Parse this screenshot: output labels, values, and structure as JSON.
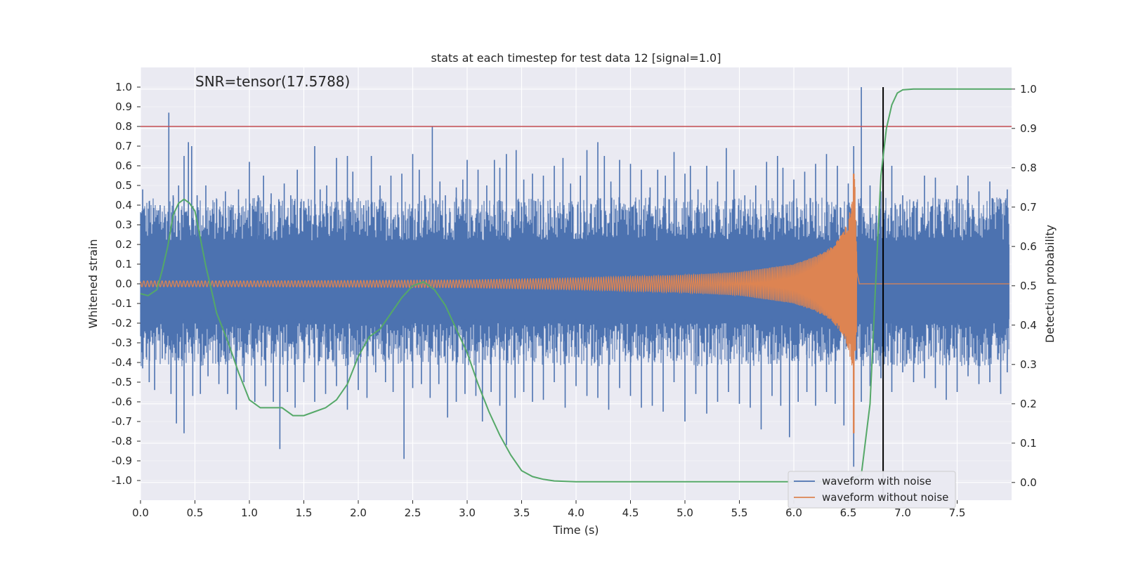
{
  "chart_data": {
    "type": "line",
    "title": "stats at each timestep for test data 12 [signal=1.0]",
    "annotation": "SNR=tensor(17.5788)",
    "xlabel": "Time (s)",
    "ylabel": "Whitened strain",
    "y2label": "Detection probability",
    "xlim": [
      0.0,
      8.0
    ],
    "ylim": [
      -1.1,
      1.1
    ],
    "y2lim": [
      -0.045,
      1.055
    ],
    "xticks": [
      "0.0",
      "0.5",
      "1.0",
      "1.5",
      "2.0",
      "2.5",
      "3.0",
      "3.5",
      "4.0",
      "4.5",
      "5.0",
      "5.5",
      "6.0",
      "6.5",
      "7.0",
      "7.5"
    ],
    "yticks": [
      "1.0",
      "0.9",
      "0.8",
      "0.7",
      "0.6",
      "0.5",
      "0.4",
      "0.3",
      "0.2",
      "0.1",
      "0.0",
      "-0.1",
      "-0.2",
      "-0.3",
      "-0.4",
      "-0.5",
      "-0.6",
      "-0.7",
      "-0.8",
      "-0.9",
      "-1.0"
    ],
    "y2ticks": [
      "1.0",
      "0.9",
      "0.8",
      "0.7",
      "0.6",
      "0.5",
      "0.4",
      "0.3",
      "0.2",
      "0.1",
      "0.0"
    ],
    "grid": true,
    "legend_position": "bottom-right",
    "threshold_line": {
      "y": 0.8,
      "color": "#c44e52"
    },
    "vertical_marker": {
      "x": 6.82,
      "color": "#000000"
    },
    "series": [
      {
        "name": "waveform with noise",
        "color": "#4c72b0",
        "spikes_pos": [
          [
            0.02,
            0.48
          ],
          [
            0.08,
            0.42
          ],
          [
            0.13,
            0.3
          ],
          [
            0.18,
            0.4
          ],
          [
            0.22,
            0.33
          ],
          [
            0.26,
            0.87
          ],
          [
            0.3,
            0.45
          ],
          [
            0.35,
            0.5
          ],
          [
            0.4,
            0.65
          ],
          [
            0.44,
            0.72
          ],
          [
            0.47,
            0.7
          ],
          [
            0.52,
            0.45
          ],
          [
            0.6,
            0.5
          ],
          [
            0.66,
            0.38
          ],
          [
            0.7,
            0.43
          ],
          [
            0.78,
            0.47
          ],
          [
            0.85,
            0.4
          ],
          [
            0.9,
            0.48
          ],
          [
            0.95,
            0.3
          ],
          [
            1.0,
            0.62
          ],
          [
            1.08,
            0.45
          ],
          [
            1.13,
            0.55
          ],
          [
            1.2,
            0.46
          ],
          [
            1.27,
            0.43
          ],
          [
            1.32,
            0.51
          ],
          [
            1.38,
            0.45
          ],
          [
            1.44,
            0.58
          ],
          [
            1.5,
            0.42
          ],
          [
            1.6,
            0.7
          ],
          [
            1.65,
            0.48
          ],
          [
            1.71,
            0.5
          ],
          [
            1.8,
            0.64
          ],
          [
            1.9,
            0.65
          ],
          [
            1.95,
            0.57
          ],
          [
            2.05,
            0.4
          ],
          [
            2.12,
            0.65
          ],
          [
            2.2,
            0.5
          ],
          [
            2.3,
            0.55
          ],
          [
            2.4,
            0.56
          ],
          [
            2.5,
            0.66
          ],
          [
            2.56,
            0.58
          ],
          [
            2.61,
            0.45
          ],
          [
            2.68,
            0.8
          ],
          [
            2.75,
            0.52
          ],
          [
            2.8,
            0.45
          ],
          [
            2.9,
            0.49
          ],
          [
            2.96,
            0.53
          ],
          [
            3.0,
            0.63
          ],
          [
            3.1,
            0.58
          ],
          [
            3.18,
            0.5
          ],
          [
            3.25,
            0.63
          ],
          [
            3.3,
            0.59
          ],
          [
            3.36,
            0.66
          ],
          [
            3.45,
            0.68
          ],
          [
            3.52,
            0.53
          ],
          [
            3.6,
            0.56
          ],
          [
            3.7,
            0.55
          ],
          [
            3.8,
            0.6
          ],
          [
            3.88,
            0.64
          ],
          [
            3.95,
            0.51
          ],
          [
            4.04,
            0.55
          ],
          [
            4.1,
            0.68
          ],
          [
            4.2,
            0.72
          ],
          [
            4.26,
            0.65
          ],
          [
            4.32,
            0.52
          ],
          [
            4.4,
            0.63
          ],
          [
            4.5,
            0.61
          ],
          [
            4.6,
            0.58
          ],
          [
            4.68,
            0.49
          ],
          [
            4.75,
            0.58
          ],
          [
            4.82,
            0.55
          ],
          [
            4.9,
            0.67
          ],
          [
            5.0,
            0.56
          ],
          [
            5.05,
            0.6
          ],
          [
            5.12,
            0.48
          ],
          [
            5.2,
            0.6
          ],
          [
            5.3,
            0.52
          ],
          [
            5.38,
            0.69
          ],
          [
            5.45,
            0.58
          ],
          [
            5.55,
            0.45
          ],
          [
            5.65,
            0.5
          ],
          [
            5.75,
            0.62
          ],
          [
            5.85,
            0.65
          ],
          [
            5.9,
            0.59
          ],
          [
            6.0,
            0.53
          ],
          [
            6.1,
            0.57
          ],
          [
            6.2,
            0.61
          ],
          [
            6.3,
            0.66
          ],
          [
            6.4,
            0.6
          ],
          [
            6.5,
            0.51
          ],
          [
            6.55,
            0.7
          ],
          [
            6.62,
            1.0
          ],
          [
            6.7,
            0.5
          ],
          [
            6.8,
            0.47
          ],
          [
            6.9,
            0.6
          ],
          [
            7.0,
            0.45
          ],
          [
            7.1,
            0.42
          ],
          [
            7.2,
            0.55
          ],
          [
            7.3,
            0.54
          ],
          [
            7.4,
            0.43
          ],
          [
            7.5,
            0.5
          ],
          [
            7.6,
            0.55
          ],
          [
            7.7,
            0.47
          ],
          [
            7.8,
            0.52
          ],
          [
            7.9,
            0.43
          ],
          [
            7.96,
            0.48
          ]
        ],
        "spikes_neg": [
          [
            0.02,
            -0.43
          ],
          [
            0.08,
            -0.5
          ],
          [
            0.13,
            -0.54
          ],
          [
            0.2,
            -0.38
          ],
          [
            0.28,
            -0.56
          ],
          [
            0.33,
            -0.71
          ],
          [
            0.4,
            -0.76
          ],
          [
            0.48,
            -0.57
          ],
          [
            0.55,
            -0.56
          ],
          [
            0.62,
            -0.47
          ],
          [
            0.72,
            -0.51
          ],
          [
            0.8,
            -0.56
          ],
          [
            0.88,
            -0.64
          ],
          [
            0.95,
            -0.5
          ],
          [
            1.05,
            -0.6
          ],
          [
            1.15,
            -0.52
          ],
          [
            1.22,
            -0.6
          ],
          [
            1.28,
            -0.84
          ],
          [
            1.35,
            -0.55
          ],
          [
            1.42,
            -0.63
          ],
          [
            1.5,
            -0.5
          ],
          [
            1.6,
            -0.6
          ],
          [
            1.7,
            -0.56
          ],
          [
            1.8,
            -0.52
          ],
          [
            1.9,
            -0.64
          ],
          [
            2.0,
            -0.54
          ],
          [
            2.08,
            -0.58
          ],
          [
            2.16,
            -0.45
          ],
          [
            2.25,
            -0.5
          ],
          [
            2.32,
            -0.55
          ],
          [
            2.42,
            -0.89
          ],
          [
            2.5,
            -0.53
          ],
          [
            2.58,
            -0.51
          ],
          [
            2.66,
            -0.58
          ],
          [
            2.74,
            -0.51
          ],
          [
            2.82,
            -0.68
          ],
          [
            2.9,
            -0.6
          ],
          [
            2.98,
            -0.56
          ],
          [
            3.08,
            -0.57
          ],
          [
            3.14,
            -0.7
          ],
          [
            3.22,
            -0.55
          ],
          [
            3.3,
            -0.62
          ],
          [
            3.36,
            -0.82
          ],
          [
            3.44,
            -0.58
          ],
          [
            3.52,
            -0.55
          ],
          [
            3.6,
            -0.6
          ],
          [
            3.7,
            -0.59
          ],
          [
            3.8,
            -0.5
          ],
          [
            3.9,
            -0.63
          ],
          [
            4.0,
            -0.52
          ],
          [
            4.1,
            -0.57
          ],
          [
            4.2,
            -0.58
          ],
          [
            4.3,
            -0.64
          ],
          [
            4.4,
            -0.53
          ],
          [
            4.5,
            -0.57
          ],
          [
            4.6,
            -0.63
          ],
          [
            4.7,
            -0.62
          ],
          [
            4.8,
            -0.65
          ],
          [
            4.9,
            -0.5
          ],
          [
            5.0,
            -0.7
          ],
          [
            5.1,
            -0.56
          ],
          [
            5.2,
            -0.66
          ],
          [
            5.3,
            -0.6
          ],
          [
            5.4,
            -0.55
          ],
          [
            5.5,
            -0.61
          ],
          [
            5.6,
            -0.63
          ],
          [
            5.7,
            -0.74
          ],
          [
            5.8,
            -0.57
          ],
          [
            5.88,
            -0.62
          ],
          [
            5.96,
            -0.78
          ],
          [
            6.04,
            -0.6
          ],
          [
            6.12,
            -0.55
          ],
          [
            6.2,
            -0.62
          ],
          [
            6.3,
            -0.55
          ],
          [
            6.38,
            -0.61
          ],
          [
            6.46,
            -0.72
          ],
          [
            6.55,
            -0.93
          ],
          [
            6.62,
            -0.6
          ],
          [
            6.7,
            -0.52
          ],
          [
            6.8,
            -0.48
          ],
          [
            6.9,
            -0.55
          ],
          [
            7.0,
            -0.45
          ],
          [
            7.1,
            -0.5
          ],
          [
            7.2,
            -0.48
          ],
          [
            7.3,
            -0.53
          ],
          [
            7.4,
            -0.59
          ],
          [
            7.5,
            -0.55
          ],
          [
            7.6,
            -0.47
          ],
          [
            7.7,
            -0.51
          ],
          [
            7.8,
            -0.5
          ],
          [
            7.9,
            -0.56
          ],
          [
            7.96,
            -0.45
          ]
        ]
      },
      {
        "name": "waveform without noise",
        "color": "#dd8452",
        "envelope": [
          [
            0.0,
            0.015
          ],
          [
            1.0,
            0.015
          ],
          [
            2.0,
            0.017
          ],
          [
            3.0,
            0.02
          ],
          [
            4.0,
            0.03
          ],
          [
            5.0,
            0.045
          ],
          [
            5.5,
            0.06
          ],
          [
            6.0,
            0.1
          ],
          [
            6.2,
            0.14
          ],
          [
            6.35,
            0.19
          ],
          [
            6.45,
            0.26
          ],
          [
            6.5,
            0.33
          ],
          [
            6.54,
            0.45
          ],
          [
            6.56,
            0.55
          ],
          [
            6.57,
            0.3
          ],
          [
            6.6,
            0.02
          ],
          [
            8.0,
            0.0
          ]
        ]
      },
      {
        "name": "detection probability",
        "color": "#55a868",
        "axis": "right",
        "points": [
          [
            0.0,
            0.48
          ],
          [
            0.07,
            0.475
          ],
          [
            0.15,
            0.49
          ],
          [
            0.2,
            0.54
          ],
          [
            0.25,
            0.6
          ],
          [
            0.3,
            0.68
          ],
          [
            0.35,
            0.71
          ],
          [
            0.4,
            0.72
          ],
          [
            0.45,
            0.71
          ],
          [
            0.5,
            0.69
          ],
          [
            0.55,
            0.62
          ],
          [
            0.6,
            0.55
          ],
          [
            0.65,
            0.49
          ],
          [
            0.7,
            0.43
          ],
          [
            0.8,
            0.36
          ],
          [
            0.9,
            0.28
          ],
          [
            1.0,
            0.21
          ],
          [
            1.1,
            0.19
          ],
          [
            1.2,
            0.19
          ],
          [
            1.3,
            0.19
          ],
          [
            1.4,
            0.17
          ],
          [
            1.5,
            0.17
          ],
          [
            1.6,
            0.18
          ],
          [
            1.7,
            0.19
          ],
          [
            1.8,
            0.21
          ],
          [
            1.9,
            0.25
          ],
          [
            2.0,
            0.32
          ],
          [
            2.1,
            0.37
          ],
          [
            2.2,
            0.39
          ],
          [
            2.3,
            0.43
          ],
          [
            2.4,
            0.47
          ],
          [
            2.5,
            0.5
          ],
          [
            2.6,
            0.51
          ],
          [
            2.7,
            0.49
          ],
          [
            2.8,
            0.45
          ],
          [
            2.9,
            0.39
          ],
          [
            3.0,
            0.33
          ],
          [
            3.1,
            0.25
          ],
          [
            3.2,
            0.18
          ],
          [
            3.3,
            0.12
          ],
          [
            3.4,
            0.07
          ],
          [
            3.5,
            0.03
          ],
          [
            3.6,
            0.015
          ],
          [
            3.7,
            0.008
          ],
          [
            3.8,
            0.004
          ],
          [
            4.0,
            0.002
          ],
          [
            5.0,
            0.002
          ],
          [
            6.0,
            0.002
          ],
          [
            6.5,
            0.003
          ],
          [
            6.62,
            0.02
          ],
          [
            6.7,
            0.2
          ],
          [
            6.75,
            0.5
          ],
          [
            6.8,
            0.78
          ],
          [
            6.85,
            0.9
          ],
          [
            6.9,
            0.96
          ],
          [
            6.95,
            0.99
          ],
          [
            7.0,
            0.998
          ],
          [
            7.1,
            1.0
          ],
          [
            8.0,
            1.0
          ]
        ]
      }
    ]
  }
}
